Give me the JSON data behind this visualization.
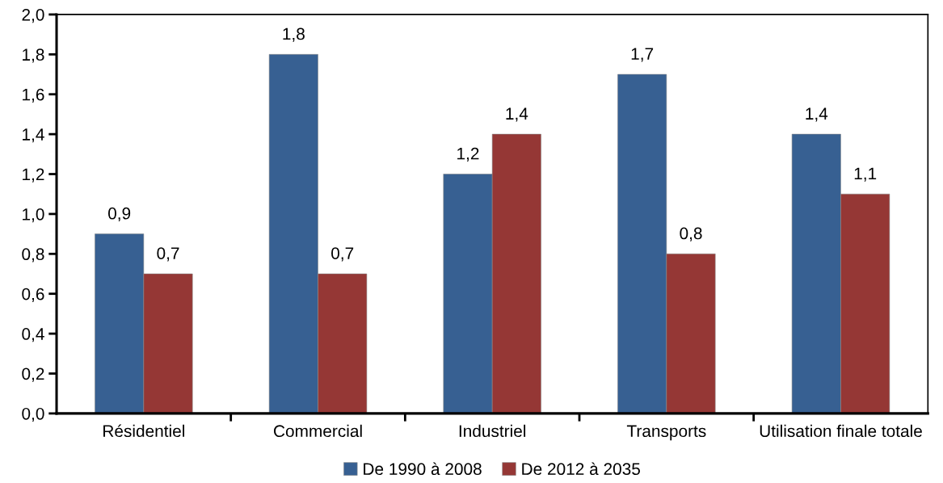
{
  "chart_data": {
    "type": "bar",
    "categories": [
      "Résidentiel",
      "Commercial",
      "Industriel",
      "Transports",
      "Utilisation finale totale"
    ],
    "series": [
      {
        "name": "De 1990 à 2008",
        "color": "#376092",
        "values": [
          0.9,
          1.8,
          1.2,
          1.7,
          1.4
        ],
        "value_labels": [
          "0,9",
          "1,8",
          "1,2",
          "1,7",
          "1,4"
        ]
      },
      {
        "name": "De 2012 à 2035",
        "color": "#953735",
        "values": [
          0.7,
          0.7,
          1.4,
          0.8,
          1.1
        ],
        "value_labels": [
          "0,7",
          "0,7",
          "1,4",
          "0,8",
          "1,1"
        ]
      }
    ],
    "ylim": [
      0,
      2.0
    ],
    "yticks": [
      {
        "value": 0,
        "label": "0,0"
      },
      {
        "value": 0.2,
        "label": "0,2"
      },
      {
        "value": 0.4,
        "label": "0,4"
      },
      {
        "value": 0.6,
        "label": "0,6"
      },
      {
        "value": 0.8,
        "label": "0,8"
      },
      {
        "value": 1.0,
        "label": "1,0"
      },
      {
        "value": 1.2,
        "label": "1,2"
      },
      {
        "value": 1.4,
        "label": "1,4"
      },
      {
        "value": 1.6,
        "label": "1,6"
      },
      {
        "value": 1.8,
        "label": "1,8"
      },
      {
        "value": 2.0,
        "label": "2,0"
      }
    ],
    "grid": false,
    "legend": "bottom"
  }
}
